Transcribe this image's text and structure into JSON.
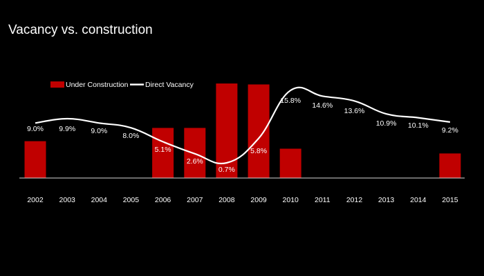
{
  "chart_data": {
    "type": "bar",
    "title": "Vacancy vs. construction",
    "categories": [
      "2002",
      "2003",
      "2004",
      "2005",
      "2006",
      "2007",
      "2008",
      "2009",
      "2010",
      "2011",
      "2012",
      "2013",
      "2014",
      "2015"
    ],
    "series": [
      {
        "name": "Under Construction",
        "kind": "bar",
        "color": "#c00000",
        "values": [
          0.39,
          null,
          null,
          null,
          0.53,
          0.53,
          1.0,
          0.99,
          0.31,
          null,
          null,
          null,
          null,
          0.26
        ]
      },
      {
        "name": "Direct Vacancy",
        "kind": "line",
        "color": "#ffffff",
        "values": [
          9.0,
          9.9,
          9.0,
          8.0,
          5.1,
          2.6,
          0.7,
          5.8,
          15.8,
          14.6,
          13.6,
          10.9,
          10.1,
          9.2
        ],
        "labels": [
          "9.0%",
          "9.9%",
          "9.0%",
          "8.0%",
          "5.1%",
          "2.6%",
          "0.7%",
          "5.8%",
          "15.8%",
          "14.6%",
          "13.6%",
          "10.9%",
          "10.1%",
          "9.2%"
        ]
      }
    ],
    "bar_scale": "relative, no printed axis",
    "vacancy_range": [
      0,
      16
    ],
    "grid": false,
    "legend_position": "top-left"
  }
}
